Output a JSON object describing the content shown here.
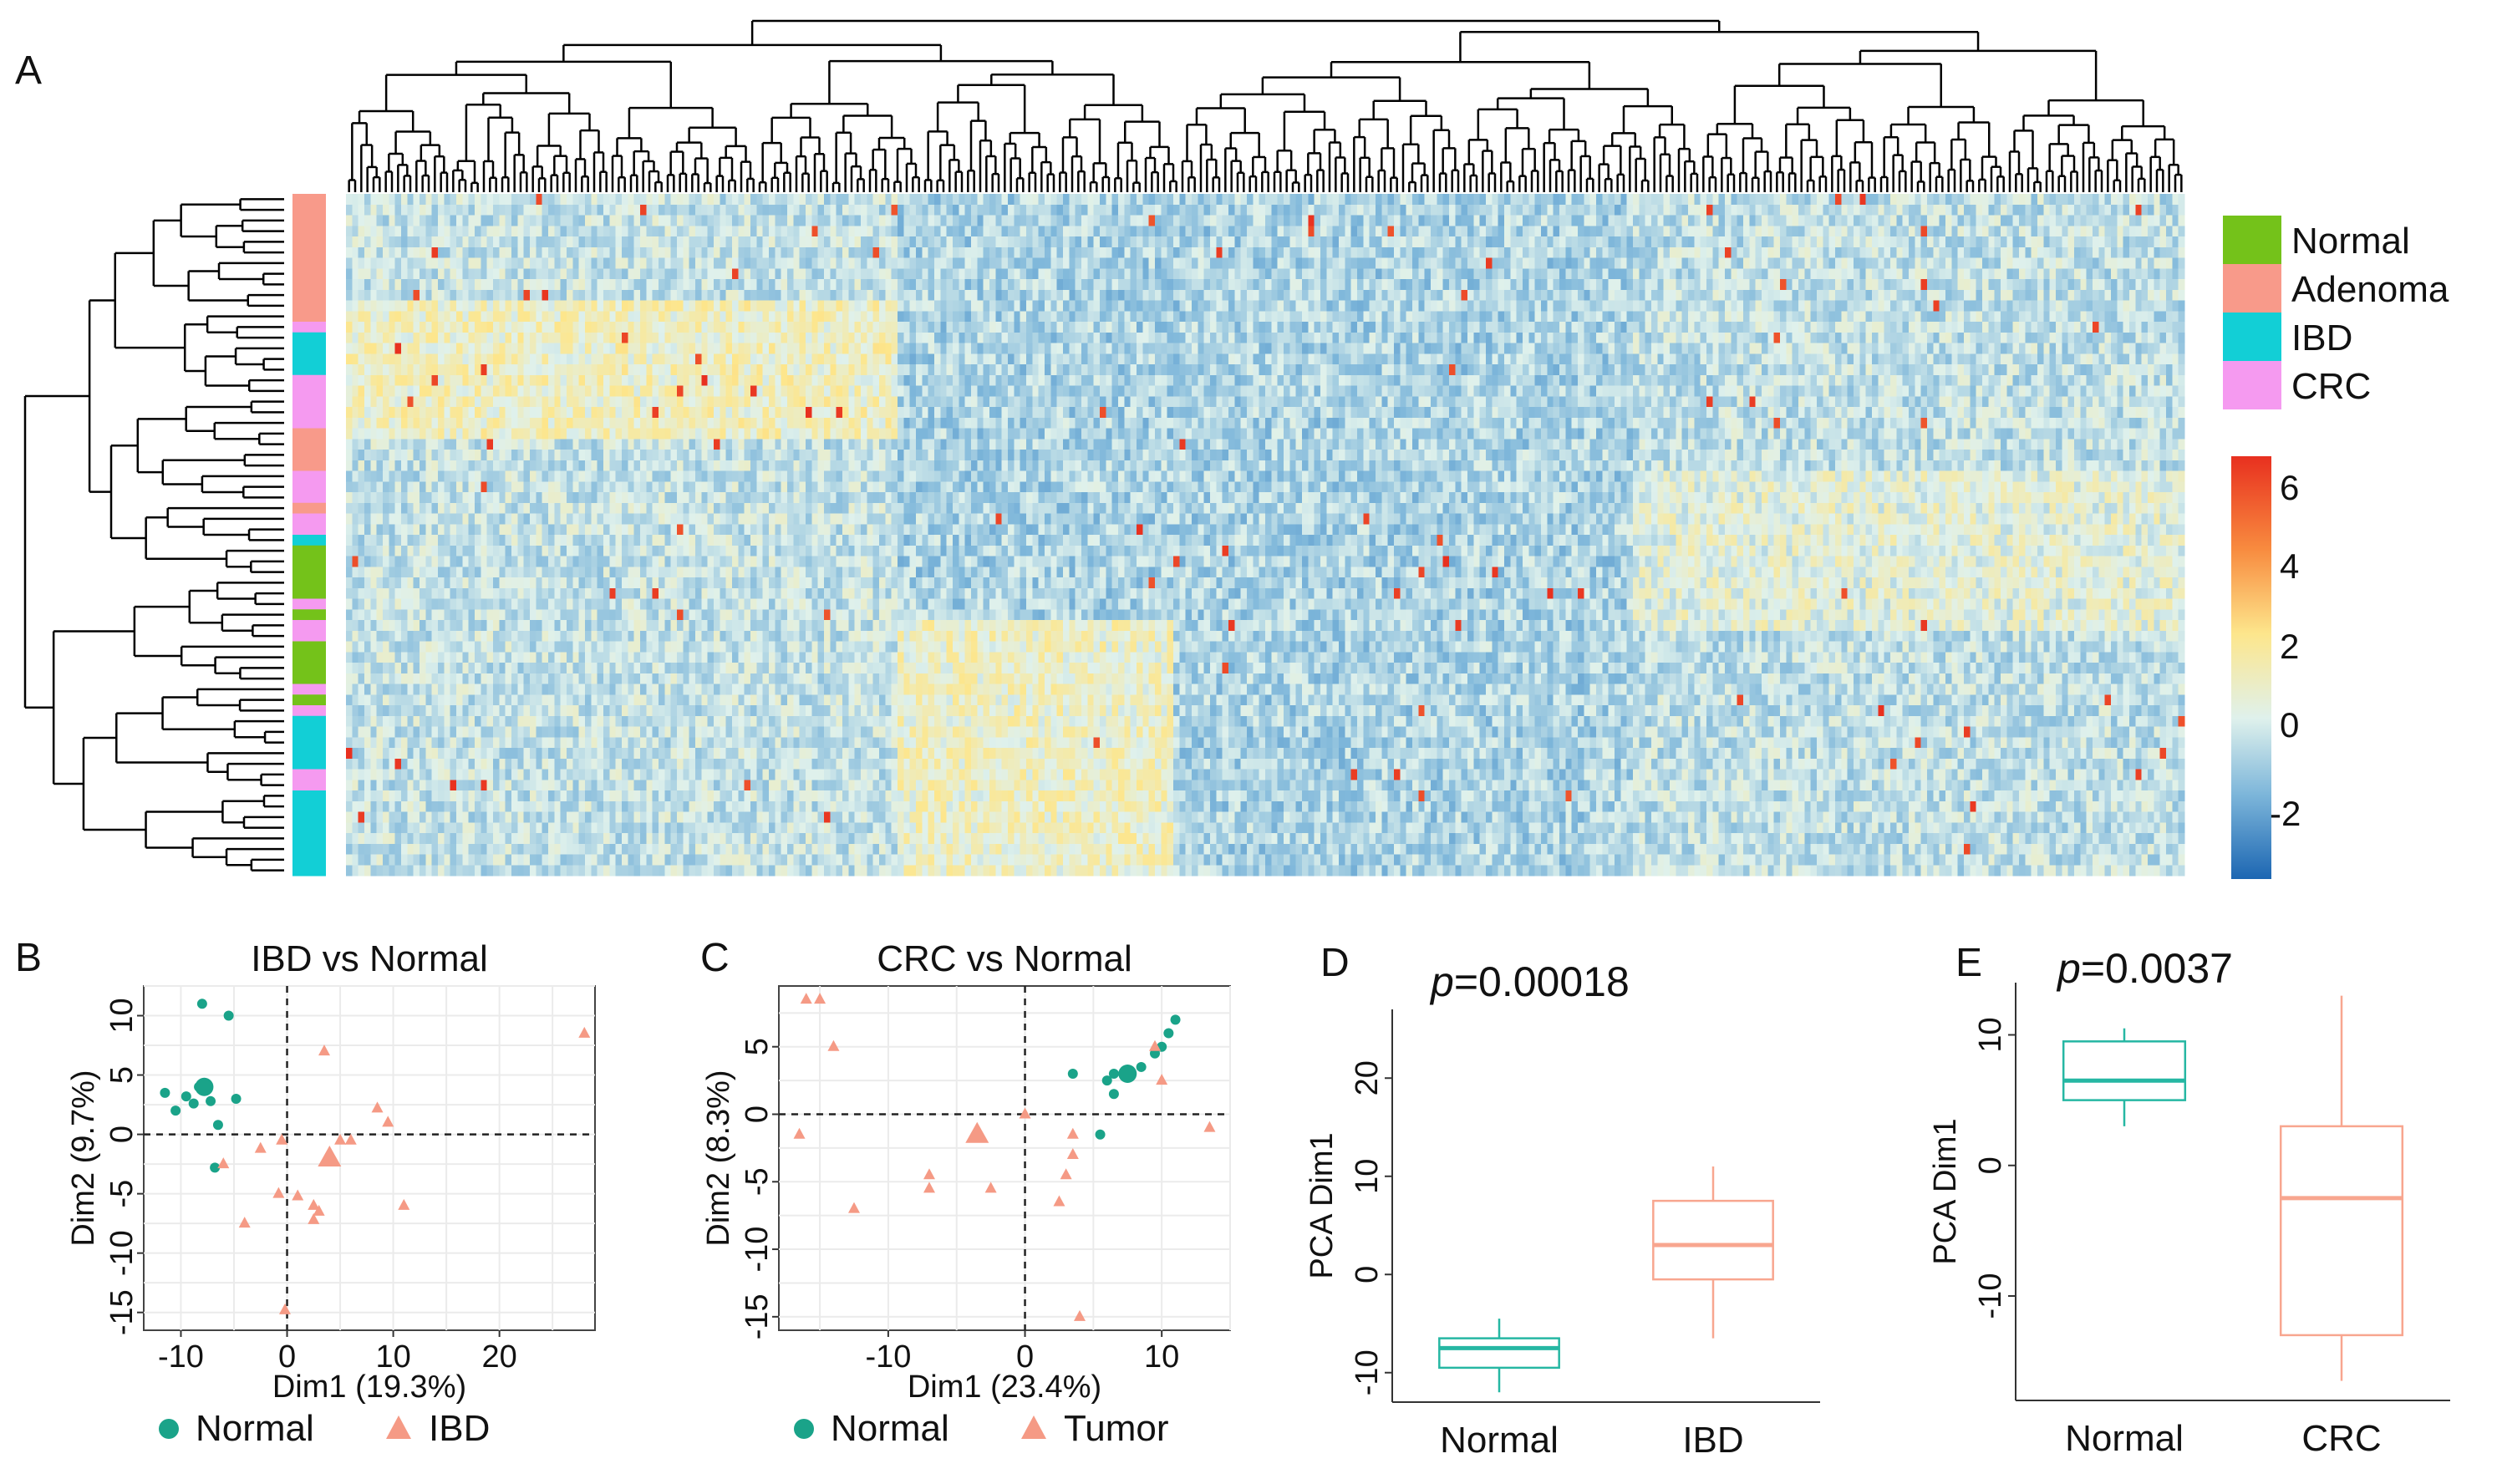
{
  "colors": {
    "normal": "#74c21a",
    "adenoma": "#f89a8a",
    "ibd": "#12cfd6",
    "crc": "#f59af0",
    "pca_normal": "#1aa389",
    "pca_disease": "#f59a85",
    "box_normal": "#26b7a3",
    "box_disease": "#f8a68f"
  },
  "panels": {
    "a": {
      "letter": "A",
      "legend": [
        "Normal",
        "Adenoma",
        "IBD",
        "CRC"
      ],
      "colorbar_ticks": [
        "6",
        "4",
        "2",
        "0",
        "-2"
      ]
    },
    "b": {
      "letter": "B"
    },
    "c": {
      "letter": "C"
    },
    "d": {
      "letter": "D",
      "p_label": "p",
      "p_value": "=0.00018"
    },
    "e": {
      "letter": "E",
      "p_label": "p",
      "p_value": "=0.0037"
    }
  },
  "chart_data": [
    {
      "type": "heatmap",
      "panel": "A",
      "title": "",
      "row_groups": [
        "Adenoma",
        "CRC",
        "IBD",
        "CRC",
        "Adenoma",
        "CRC",
        "Adenoma",
        "CRC",
        "IBD",
        "Normal",
        "CRC",
        "Normal",
        "CRC",
        "Normal",
        "CRC",
        "Normal",
        "CRC",
        "IBD",
        "CRC",
        "IBD"
      ],
      "row_group_sizes": [
        12,
        1,
        4,
        5,
        4,
        3,
        1,
        2,
        1,
        5,
        1,
        1,
        2,
        4,
        1,
        1,
        1,
        5,
        2,
        8
      ],
      "n_columns": 300,
      "value_range": [
        -3.5,
        6.5
      ],
      "colorbar_ticks": [
        6,
        4,
        2,
        0,
        -2
      ],
      "legend": [
        "Normal",
        "Adenoma",
        "IBD",
        "CRC"
      ]
    },
    {
      "type": "scatter",
      "panel": "B",
      "title": "IBD vs Normal",
      "xlabel": "Dim1 (19.3%)",
      "ylabel": "Dim2 (9.7%)",
      "xlim": [
        -13.5,
        29
      ],
      "ylim": [
        -16.5,
        12.5
      ],
      "xticks": [
        -10,
        0,
        10,
        20
      ],
      "yticks": [
        -15,
        -10,
        -5,
        0,
        5,
        10
      ],
      "legend": [
        "Normal",
        "IBD"
      ],
      "series": [
        {
          "name": "Normal",
          "marker": "circle",
          "x": [
            -8.0,
            -5.5,
            -11.5,
            -10.5,
            -9.5,
            -8.8,
            -8.3,
            -7.2,
            -4.8,
            -6.5,
            -6.8
          ],
          "y": [
            11.0,
            10.0,
            3.5,
            2.0,
            3.2,
            2.6,
            4.0,
            2.8,
            3.0,
            0.8,
            -2.8
          ]
        },
        {
          "name": "IBD",
          "marker": "triangle",
          "x": [
            3.5,
            28.0,
            8.5,
            9.5,
            5.0,
            6.0,
            -0.5,
            -2.5,
            -0.8,
            1.0,
            -4.0,
            2.5,
            3.0,
            11.0,
            2.5,
            -0.2,
            -6.0
          ],
          "y": [
            7.0,
            8.5,
            2.2,
            1.0,
            -0.5,
            -0.5,
            -0.5,
            -1.2,
            -5.0,
            -5.2,
            -7.5,
            -6.0,
            -6.5,
            -6.0,
            -7.2,
            -14.8,
            -2.5
          ]
        }
      ],
      "centroids": [
        {
          "name": "Normal",
          "x": -7.8,
          "y": 4.0
        },
        {
          "name": "IBD",
          "x": 4.0,
          "y": -2.0
        }
      ]
    },
    {
      "type": "scatter",
      "panel": "C",
      "title": "CRC vs Normal",
      "xlabel": "Dim1 (23.4%)",
      "ylabel": "Dim2 (8.3%)",
      "xlim": [
        -18,
        15
      ],
      "ylim": [
        -16,
        9.5
      ],
      "xticks": [
        -10,
        0,
        10
      ],
      "yticks": [
        -15,
        -10,
        -5,
        0,
        5
      ],
      "legend": [
        "Normal",
        "Tumor"
      ],
      "series": [
        {
          "name": "Normal",
          "marker": "circle",
          "x": [
            11.0,
            10.5,
            10.0,
            9.5,
            8.5,
            6.5,
            6.0,
            6.5,
            3.5,
            5.5
          ],
          "y": [
            7.0,
            6.0,
            5.0,
            4.5,
            3.5,
            3.0,
            2.5,
            1.5,
            3.0,
            -1.5
          ]
        },
        {
          "name": "Tumor",
          "marker": "triangle",
          "x": [
            -16.0,
            -15.0,
            -14.0,
            -16.5,
            -12.5,
            -7.0,
            -7.0,
            -2.5,
            0.0,
            3.5,
            3.0,
            3.5,
            2.5,
            4.0,
            9.5,
            10.0,
            13.5
          ],
          "y": [
            8.5,
            8.5,
            5.0,
            -1.5,
            -7.0,
            -4.5,
            -5.5,
            -5.5,
            0.0,
            -3.0,
            -4.5,
            -1.5,
            -6.5,
            -15.0,
            5.0,
            2.5,
            -1.0
          ]
        }
      ],
      "centroids": [
        {
          "name": "Normal",
          "x": 7.5,
          "y": 3.0
        },
        {
          "name": "Tumor",
          "x": -3.5,
          "y": -1.5
        }
      ]
    },
    {
      "type": "box",
      "panel": "D",
      "title": "",
      "xlabel": "",
      "ylabel": "PCA Dim1",
      "ylim": [
        -13,
        27
      ],
      "yticks": [
        -10,
        0,
        10,
        20
      ],
      "categories": [
        "Normal",
        "IBD"
      ],
      "boxes": [
        {
          "name": "Normal",
          "min": -12.0,
          "q1": -9.5,
          "median": -7.5,
          "q3": -6.5,
          "max": -4.5
        },
        {
          "name": "IBD",
          "min": -6.5,
          "q1": -0.5,
          "median": 3.0,
          "q3": 7.5,
          "max": 11.0
        }
      ],
      "annotation": "p=0.00018"
    },
    {
      "type": "box",
      "panel": "E",
      "title": "",
      "xlabel": "",
      "ylabel": "PCA Dim1",
      "ylim": [
        -18,
        14
      ],
      "yticks": [
        -10,
        0,
        10
      ],
      "categories": [
        "Normal",
        "CRC"
      ],
      "boxes": [
        {
          "name": "Normal",
          "min": 3.0,
          "q1": 5.0,
          "median": 6.5,
          "q3": 9.5,
          "max": 10.5
        },
        {
          "name": "CRC",
          "min": -16.5,
          "q1": -13.0,
          "median": -2.5,
          "q3": 3.0,
          "max": 13.0
        }
      ],
      "annotation": "p=0.0037"
    }
  ]
}
